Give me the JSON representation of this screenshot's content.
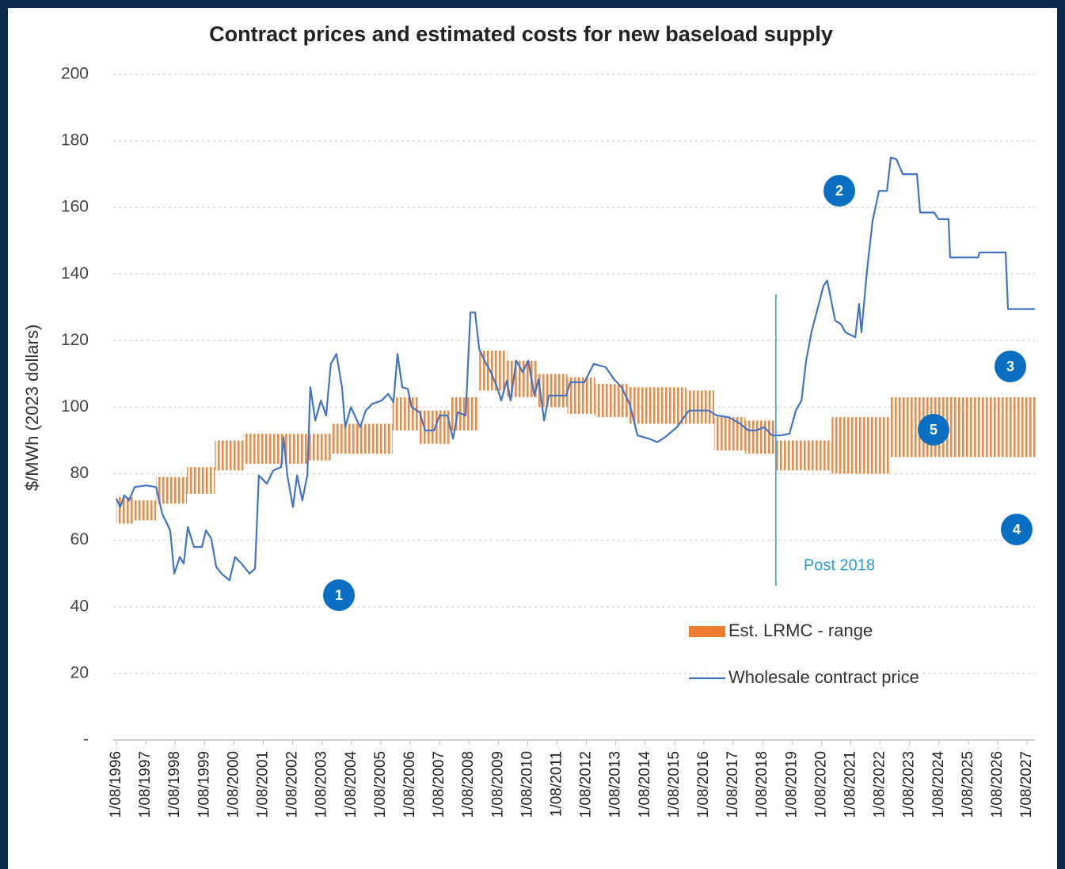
{
  "chart_data": {
    "type": "line",
    "title": "Contract prices and estimated costs for new baseload supply",
    "y_label": "$/MWh (2023 dollars)",
    "ylim": [
      0,
      200
    ],
    "yticks": [
      {
        "value": 0,
        "label": "-"
      },
      20,
      40,
      60,
      80,
      100,
      120,
      140,
      160,
      180,
      200
    ],
    "xlim": [
      1996,
      2027.3
    ],
    "xticks": [
      {
        "value": 1996,
        "label": "1/08/1996"
      },
      {
        "value": 1997,
        "label": "1/08/1997"
      },
      {
        "value": 1998,
        "label": "1/08/1998"
      },
      {
        "value": 1999,
        "label": "1/08/1999"
      },
      {
        "value": 2000,
        "label": "1/08/2000"
      },
      {
        "value": 2001,
        "label": "1/08/2001"
      },
      {
        "value": 2002,
        "label": "1/08/2002"
      },
      {
        "value": 2003,
        "label": "1/08/2003"
      },
      {
        "value": 2004,
        "label": "1/08/2004"
      },
      {
        "value": 2005,
        "label": "1/08/2005"
      },
      {
        "value": 2006,
        "label": "1/08/2006"
      },
      {
        "value": 2007,
        "label": "1/08/2007"
      },
      {
        "value": 2008,
        "label": "1/08/2008"
      },
      {
        "value": 2009,
        "label": "1/08/2009"
      },
      {
        "value": 2010,
        "label": "1/08/2010"
      },
      {
        "value": 2011,
        "label": "1/08/2011"
      },
      {
        "value": 2012,
        "label": "1/08/2012"
      },
      {
        "value": 2013,
        "label": "1/08/2013"
      },
      {
        "value": 2014,
        "label": "1/08/2014"
      },
      {
        "value": 2015,
        "label": "1/08/2015"
      },
      {
        "value": 2016,
        "label": "1/08/2016"
      },
      {
        "value": 2017,
        "label": "1/08/2017"
      },
      {
        "value": 2018,
        "label": "1/08/2018"
      },
      {
        "value": 2019,
        "label": "1/08/2019"
      },
      {
        "value": 2020,
        "label": "1/08/2020"
      },
      {
        "value": 2021,
        "label": "1/08/2021"
      },
      {
        "value": 2022,
        "label": "1/08/2022"
      },
      {
        "value": 2023,
        "label": "1/08/2023"
      },
      {
        "value": 2024,
        "label": "1/08/2024"
      },
      {
        "value": 2025,
        "label": "1/08/2025"
      },
      {
        "value": 2026,
        "label": "1/08/2026"
      },
      {
        "value": 2027,
        "label": "1/08/2027"
      }
    ],
    "grid": true,
    "legend": "lower right",
    "series": [
      {
        "name": "Est. LRMC - range",
        "type": "range",
        "color": "#ed7d31",
        "x_start": [
          1996,
          1996.6,
          1997.35,
          1998.4,
          1999.35,
          2000.35,
          2001.35,
          2002.5,
          2003.35,
          2005.4,
          2006.3,
          2007.35,
          2008.35,
          2009.3,
          2010.35,
          2011.35,
          2012.3,
          2013.4,
          2014.4,
          2015.4,
          2016.35,
          2017.4,
          2018.4,
          2020.35,
          2022.3
        ],
        "x_end": [
          1996.6,
          1997.35,
          1998.4,
          1999.35,
          2000.35,
          2001.35,
          2002.5,
          2003.35,
          2005.4,
          2006.3,
          2007.35,
          2008.35,
          2009.3,
          2010.35,
          2011.35,
          2012.3,
          2013.4,
          2014.4,
          2015.4,
          2016.35,
          2017.4,
          2018.4,
          2020.35,
          2022.3,
          2027.3
        ],
        "low": [
          65,
          66,
          71,
          74,
          81,
          83,
          83,
          84,
          86,
          93,
          89,
          93,
          105,
          103,
          100,
          98,
          97,
          95,
          95,
          95,
          87,
          86,
          81,
          80,
          85
        ],
        "high": [
          73,
          72,
          79,
          82,
          90,
          92,
          92,
          92,
          95,
          103,
          99,
          103,
          117,
          114,
          110,
          109,
          107,
          106,
          106,
          105,
          97,
          96,
          90,
          97,
          103
        ]
      },
      {
        "name": "Wholesale contract price",
        "type": "line",
        "color": "#4472c4",
        "x": [
          1996.0,
          1996.13,
          1996.27,
          1996.43,
          1996.62,
          1997.02,
          1997.35,
          1997.56,
          1997.83,
          1997.97,
          1998.16,
          1998.29,
          1998.43,
          1998.64,
          1998.91,
          1999.05,
          1999.23,
          1999.4,
          1999.58,
          1999.85,
          2000.04,
          2000.26,
          2000.53,
          2000.72,
          2000.85,
          2001.12,
          2001.34,
          2001.61,
          2001.69,
          2001.82,
          2002.01,
          2002.15,
          2002.33,
          2002.5,
          2002.6,
          2002.77,
          2002.96,
          2003.14,
          2003.3,
          2003.49,
          2003.68,
          2003.79,
          2003.98,
          2004.3,
          2004.49,
          2004.71,
          2005.03,
          2005.25,
          2005.43,
          2005.57,
          2005.73,
          2005.92,
          2006.05,
          2006.32,
          2006.51,
          2006.81,
          2007.0,
          2007.27,
          2007.46,
          2007.62,
          2007.89,
          2008.05,
          2008.21,
          2008.35,
          2008.53,
          2008.75,
          2008.96,
          2009.1,
          2009.29,
          2009.42,
          2009.61,
          2009.83,
          2010.02,
          2010.23,
          2010.37,
          2010.56,
          2010.72,
          2011.31,
          2011.45,
          2011.93,
          2012.25,
          2012.66,
          2012.93,
          2013.2,
          2013.47,
          2013.74,
          2014.14,
          2014.41,
          2014.68,
          2015.08,
          2015.49,
          2016.16,
          2016.43,
          2016.84,
          2017.24,
          2017.51,
          2017.78,
          2018.05,
          2018.32,
          2018.59,
          2018.91,
          2019.13,
          2019.32,
          2019.48,
          2019.67,
          2019.94,
          2020.07,
          2020.2,
          2020.47,
          2020.66,
          2020.82,
          2021.15,
          2021.28,
          2021.36,
          2021.55,
          2021.74,
          2021.96,
          2022.23,
          2022.36,
          2022.55,
          2022.77,
          2023.25,
          2023.36,
          2023.84,
          2023.98,
          2024.33,
          2024.38,
          2025.33,
          2025.38,
          2026.27,
          2026.35,
          2027.27
        ],
        "values": [
          72.5,
          70,
          73.5,
          72,
          76,
          76.5,
          76,
          68,
          63,
          50,
          55,
          53,
          64,
          58,
          58,
          63,
          60.5,
          52,
          50,
          48,
          55,
          53,
          50,
          51.5,
          79.5,
          77,
          81,
          82,
          91,
          79.5,
          70,
          79.5,
          72,
          79.5,
          106,
          96,
          102,
          97.5,
          113,
          116,
          106,
          94,
          100,
          94,
          99,
          101,
          102,
          104,
          101.5,
          116,
          106,
          105.5,
          100,
          98.5,
          93,
          93,
          97.5,
          97.5,
          90.5,
          98.5,
          97.5,
          128.5,
          128.5,
          117.5,
          114,
          110.5,
          106,
          102,
          108,
          102,
          114,
          110.5,
          114,
          103.5,
          108.5,
          96,
          103.5,
          103.5,
          107.5,
          107.5,
          113,
          112,
          108.5,
          106,
          101,
          91.5,
          90.5,
          89.5,
          91,
          94,
          99,
          99,
          97.5,
          97,
          95,
          93,
          93,
          94,
          91.5,
          91.5,
          92,
          99,
          102,
          114,
          123,
          132,
          136.5,
          138,
          126,
          125,
          122.5,
          121,
          131,
          122.5,
          141,
          156,
          165,
          165,
          175,
          174.5,
          170,
          170,
          158.5,
          158.5,
          156.5,
          156.5,
          145,
          145,
          146.5,
          146.5,
          129.5,
          129.5
        ]
      }
    ],
    "vline": {
      "x": 2018.45,
      "label": "Post 2018"
    },
    "markers": [
      "1",
      "2",
      "3",
      "4",
      "5"
    ]
  }
}
